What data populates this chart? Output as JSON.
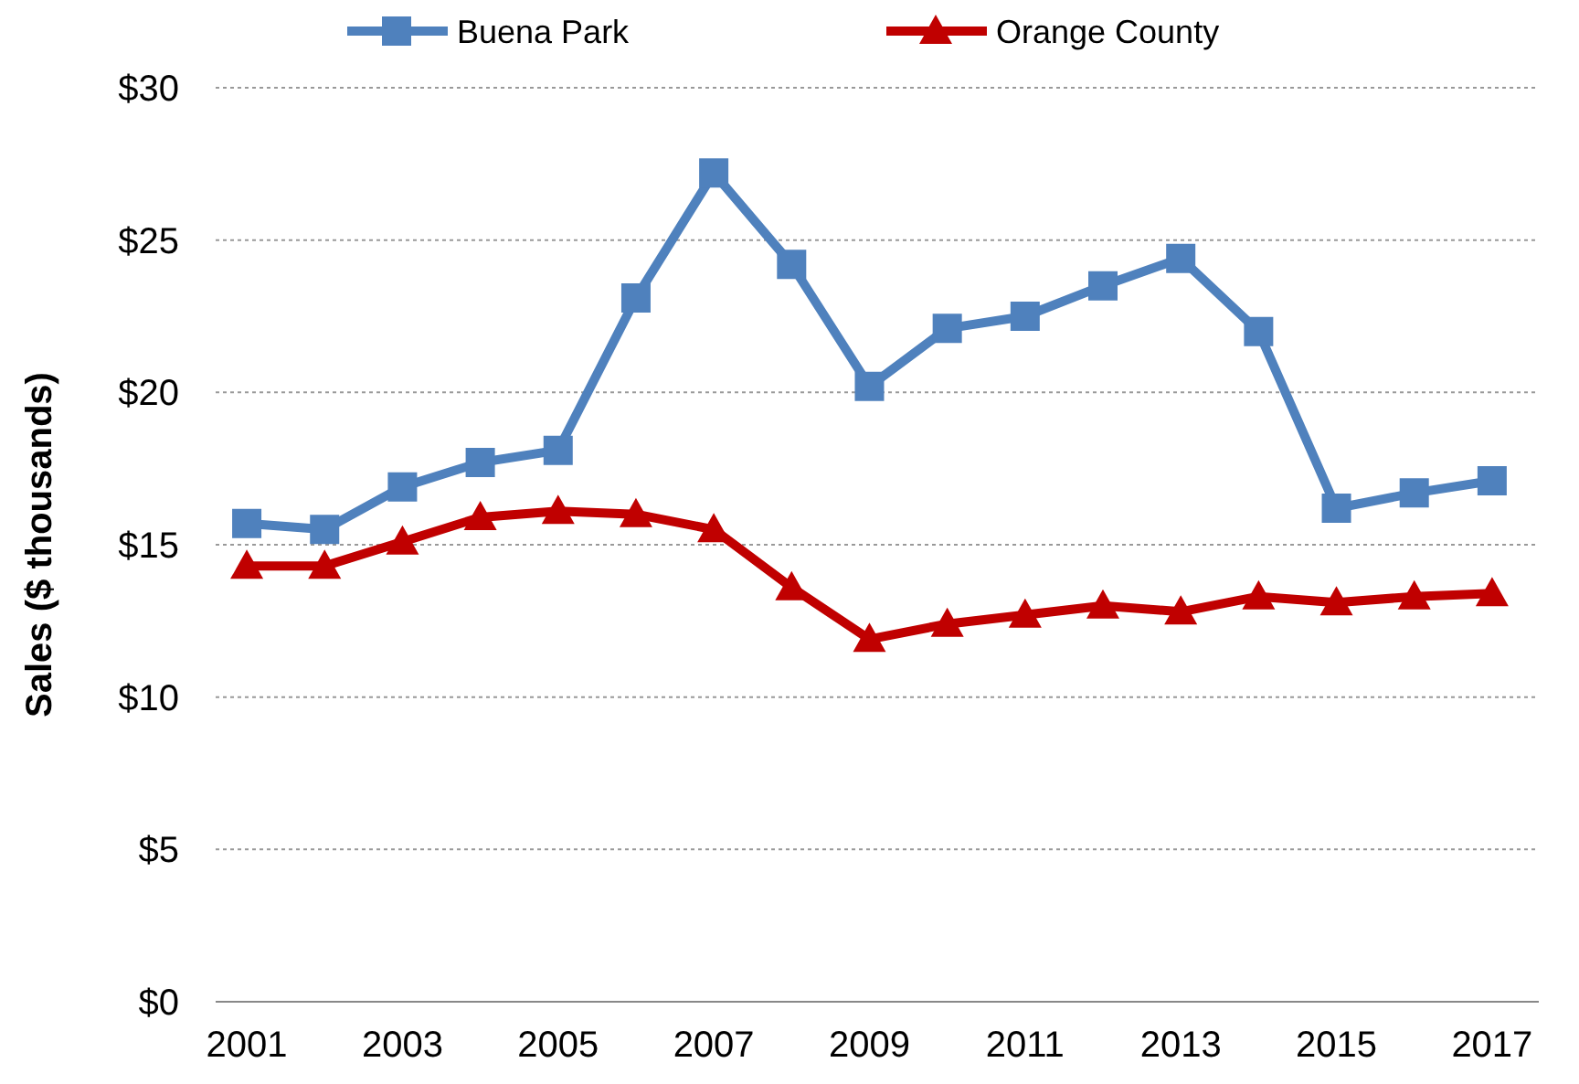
{
  "chart_data": {
    "type": "line",
    "ylabel": "Sales ($ thousands)",
    "x": [
      2001,
      2002,
      2003,
      2004,
      2005,
      2006,
      2007,
      2008,
      2009,
      2010,
      2011,
      2012,
      2013,
      2014,
      2015,
      2016,
      2017
    ],
    "xlim": [
      2000.6,
      2017.6
    ],
    "xticks": [
      2001,
      2003,
      2005,
      2007,
      2009,
      2011,
      2013,
      2015,
      2017
    ],
    "ylim": [
      0,
      30
    ],
    "yticks": [
      {
        "value": 0,
        "label": "$0"
      },
      {
        "value": 5,
        "label": "$5"
      },
      {
        "value": 10,
        "label": "$10"
      },
      {
        "value": 15,
        "label": "$15"
      },
      {
        "value": 20,
        "label": "$20"
      },
      {
        "value": 25,
        "label": "$25"
      },
      {
        "value": 30,
        "label": "$30"
      }
    ],
    "grid": "y",
    "legend": "top",
    "series": [
      {
        "name": "Buena Park",
        "color": "#4f81bd",
        "marker": "square",
        "values": [
          15.7,
          15.5,
          16.9,
          17.7,
          18.1,
          23.1,
          27.2,
          24.2,
          20.2,
          22.1,
          22.5,
          23.5,
          24.4,
          22.0,
          16.2,
          16.7,
          17.1
        ]
      },
      {
        "name": "Orange County",
        "color": "#c00000",
        "marker": "triangle",
        "values": [
          14.3,
          14.3,
          15.1,
          15.9,
          16.1,
          16.0,
          15.5,
          13.6,
          11.9,
          12.4,
          12.7,
          13.0,
          12.8,
          13.3,
          13.1,
          13.3,
          13.4
        ]
      }
    ]
  }
}
